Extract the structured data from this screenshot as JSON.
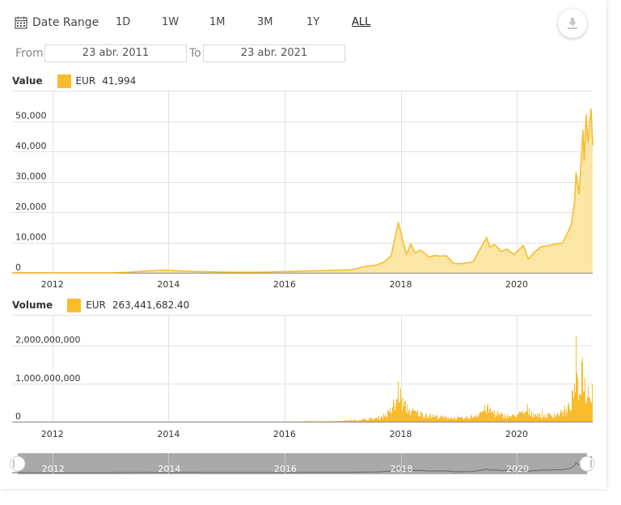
{
  "toolbar": {
    "date_range_label": "Date Range",
    "ranges": [
      "1D",
      "1W",
      "1M",
      "3M",
      "1Y",
      "ALL"
    ],
    "active_range": "ALL",
    "download_icon": "download-icon"
  },
  "date_filter": {
    "from_label": "From",
    "from_value": "23 abr. 2011",
    "to_label": "To",
    "to_value": "23 abr. 2021"
  },
  "colors": {
    "series": "#f9bc2c",
    "area": "#fbe6a6",
    "navigator": "#a9a9a9"
  },
  "chart_data": [
    {
      "type": "area",
      "title": "Value",
      "legend": {
        "currency": "EUR",
        "value": "41,994"
      },
      "x_tick_labels": [
        "2012",
        "2014",
        "2016",
        "2018",
        "2020"
      ],
      "y_tick_labels": [
        "0",
        "10,000",
        "20,000",
        "30,000",
        "40,000",
        "50,000"
      ],
      "ylim": [
        0,
        60000
      ],
      "x_range": [
        "2011-04-23",
        "2021-04-23"
      ],
      "grid": true,
      "series": [
        {
          "x": [
            "2011-04-23",
            "2011-06-10",
            "2012-01-01",
            "2013-01-01",
            "2013-04-10",
            "2013-11-30",
            "2014-06-01",
            "2015-01-15",
            "2015-08-01",
            "2016-01-01",
            "2016-06-01",
            "2017-01-01",
            "2017-03-01",
            "2017-05-15",
            "2017-08-01",
            "2017-09-15",
            "2017-11-01",
            "2017-12-17",
            "2018-01-15",
            "2018-02-06",
            "2018-03-05",
            "2018-04-01",
            "2018-05-05",
            "2018-06-28",
            "2018-08-01",
            "2018-09-01",
            "2018-10-15",
            "2018-11-25",
            "2018-12-15",
            "2019-02-01",
            "2019-04-01",
            "2019-05-01",
            "2019-06-26",
            "2019-07-15",
            "2019-08-15",
            "2019-09-25",
            "2019-11-01",
            "2019-12-15",
            "2020-02-12",
            "2020-03-13",
            "2020-04-15",
            "2020-06-01",
            "2020-07-27",
            "2020-09-01",
            "2020-10-15",
            "2020-11-15",
            "2020-12-10",
            "2020-12-31",
            "2021-01-08",
            "2021-01-27",
            "2021-02-10",
            "2021-02-21",
            "2021-02-28",
            "2021-03-13",
            "2021-03-25",
            "2021-04-13",
            "2021-04-23"
          ],
          "y": [
            1,
            20,
            4,
            10,
            150,
            850,
            450,
            200,
            200,
            380,
            600,
            850,
            1000,
            2000,
            2500,
            3500,
            5500,
            16500,
            10500,
            6000,
            9500,
            6500,
            7500,
            5200,
            5700,
            5500,
            5600,
            3300,
            3000,
            3100,
            3600,
            6500,
            11600,
            8500,
            9300,
            7000,
            7800,
            6000,
            9000,
            4500,
            6500,
            8500,
            9000,
            9500,
            9800,
            13000,
            16000,
            24000,
            33000,
            26000,
            37000,
            47000,
            37000,
            52000,
            43000,
            54000,
            41994
          ]
        }
      ]
    },
    {
      "type": "bar",
      "title": "Volume",
      "legend": {
        "currency": "EUR",
        "value": "263,441,682.40"
      },
      "x_tick_labels": [
        "2012",
        "2014",
        "2016",
        "2018",
        "2020"
      ],
      "y_tick_labels": [
        "0",
        "1,000,000,000",
        "2,000,000,000"
      ],
      "ylim": [
        0,
        2800000000
      ],
      "x_range": [
        "2011-04-23",
        "2021-04-23"
      ],
      "grid": true,
      "envelope": {
        "x": [
          "2011-04-23",
          "2015-06-01",
          "2016-01-01",
          "2016-12-01",
          "2017-04-01",
          "2017-08-01",
          "2017-10-15",
          "2017-12-01",
          "2017-12-18",
          "2018-01-10",
          "2018-03-01",
          "2018-06-01",
          "2018-10-01",
          "2019-02-01",
          "2019-04-01",
          "2019-06-26",
          "2019-09-01",
          "2019-12-01",
          "2020-03-13",
          "2020-06-01",
          "2020-09-01",
          "2020-11-15",
          "2020-12-20",
          "2021-01-08",
          "2021-01-25",
          "2021-02-10",
          "2021-02-22",
          "2021-03-10",
          "2021-04-10",
          "2021-04-23"
        ],
        "y": [
          2000000,
          5000000,
          8000000,
          20000000,
          60000000,
          120000000,
          300000000,
          600000000,
          1250000000,
          700000000,
          400000000,
          250000000,
          160000000,
          120000000,
          200000000,
          500000000,
          250000000,
          200000000,
          380000000,
          220000000,
          260000000,
          400000000,
          900000000,
          1800000000,
          800000000,
          1900000000,
          2150000000,
          1000000000,
          1300000000,
          1350000000
        ]
      }
    }
  ],
  "navigator": {
    "x_tick_labels": [
      "2012",
      "2014",
      "2016",
      "2018",
      "2020"
    ]
  }
}
